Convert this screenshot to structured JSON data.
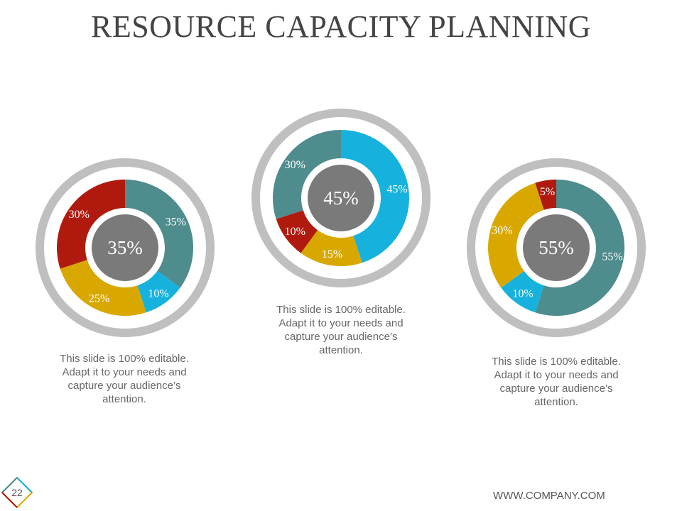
{
  "title": "RESOURCE CAPACITY PLANNING",
  "chart_data": [
    {
      "type": "pie",
      "center_label": "35%",
      "slices": [
        {
          "value": 35,
          "label": "35%",
          "color": "#4e8c8e"
        },
        {
          "value": 10,
          "label": "10%",
          "color": "#16b2dd"
        },
        {
          "value": 25,
          "label": "25%",
          "color": "#d9a800"
        },
        {
          "value": 30,
          "label": "30%",
          "color": "#b01a0e"
        }
      ]
    },
    {
      "type": "pie",
      "center_label": "45%",
      "slices": [
        {
          "value": 45,
          "label": "45%",
          "color": "#16b2dd"
        },
        {
          "value": 15,
          "label": "15%",
          "color": "#d9a800"
        },
        {
          "value": 10,
          "label": "10%",
          "color": "#b01a0e"
        },
        {
          "value": 30,
          "label": "30%",
          "color": "#4e8c8e"
        }
      ]
    },
    {
      "type": "pie",
      "center_label": "55%",
      "slices": [
        {
          "value": 55,
          "label": "55%",
          "color": "#4e8c8e"
        },
        {
          "value": 10,
          "label": "10%",
          "color": "#16b2dd"
        },
        {
          "value": 30,
          "label": "30%",
          "color": "#d9a800"
        },
        {
          "value": 5,
          "label": "5%",
          "color": "#b01a0e"
        }
      ]
    }
  ],
  "captions": [
    {
      "line1": "This slide is 100% editable.",
      "line2": "Adapt it to your needs and",
      "line3": "capture your audience’s",
      "line4": "attention."
    },
    {
      "line1": "This slide is 100% editable.",
      "line2": "Adapt it to your needs and",
      "line3": "capture your audience’s",
      "line4": "attention."
    },
    {
      "line1": "This slide is 100% editable.",
      "line2": "Adapt it to your needs and",
      "line3": "capture your audience’s",
      "line4": "attention."
    }
  ],
  "footer": {
    "url": "WWW.COMPANY.COM",
    "page_number": "22"
  },
  "colors": {
    "outer_ring": "#bfbfbf",
    "center_disc": "#7a7a7a",
    "title": "#444444",
    "caption": "#666666"
  }
}
